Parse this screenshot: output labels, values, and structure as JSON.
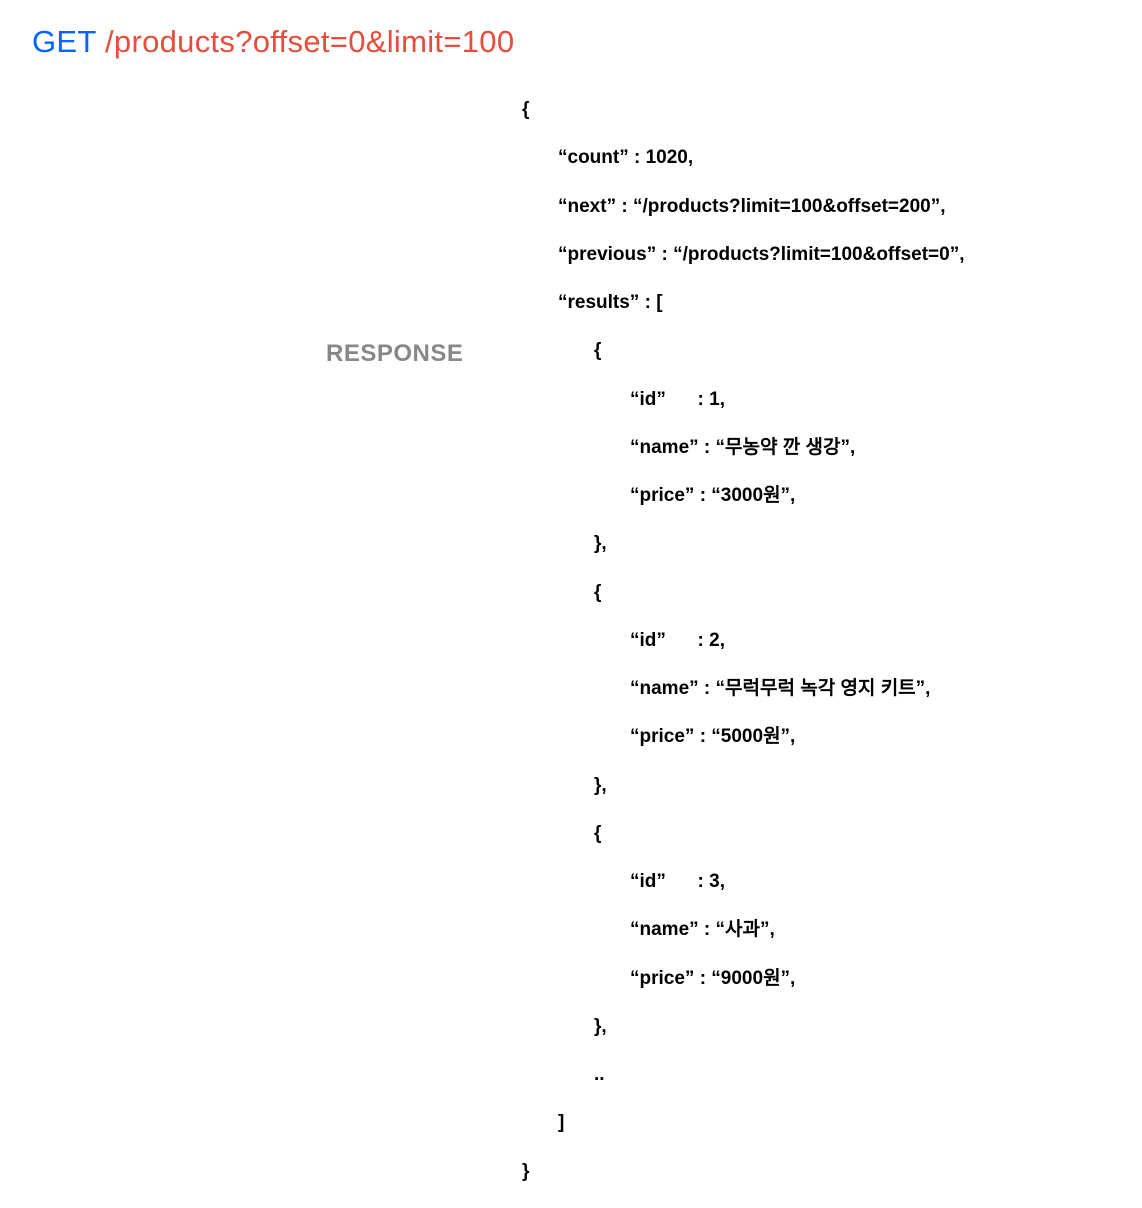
{
  "request": {
    "method": "GET",
    "url": "/products?offset=0&limit=100"
  },
  "response_label": "RESPONSE",
  "json": {
    "open_brace": "{",
    "count_line": "“count” : 1020,",
    "next_line": "“next” : “/products?limit=100&offset=200”,",
    "previous_line": "“previous” : “/products?limit=100&offset=0”,",
    "results_open": "“results” : [",
    "item1_open": "{",
    "item1_id": "“id”      : 1,",
    "item1_name": "“name” : “무농약 깐 생강”,",
    "item1_price": "“price” : “3000원”,",
    "item1_close": "},",
    "item2_open": "{",
    "item2_id": "“id”      : 2,",
    "item2_name": "“name” : “무럭무럭 녹각 영지 키트”,",
    "item2_price": "“price” : “5000원”,",
    "item2_close": "},",
    "item3_open": "{",
    "item3_id": "“id”      : 3,",
    "item3_name": "“name” : “사과”,",
    "item3_price": "“price” : “9000원”,",
    "item3_close": "},",
    "ellipsis": "..",
    "results_close": "]",
    "close_brace": "}"
  },
  "colors": {
    "method": "#0066ff",
    "url": "#e84c3d",
    "label": "#888888",
    "text": "#000000",
    "background": "#ffffff"
  },
  "typography": {
    "header_fontsize": 31,
    "label_fontsize": 24,
    "json_fontsize": 19,
    "json_weight": 700
  }
}
